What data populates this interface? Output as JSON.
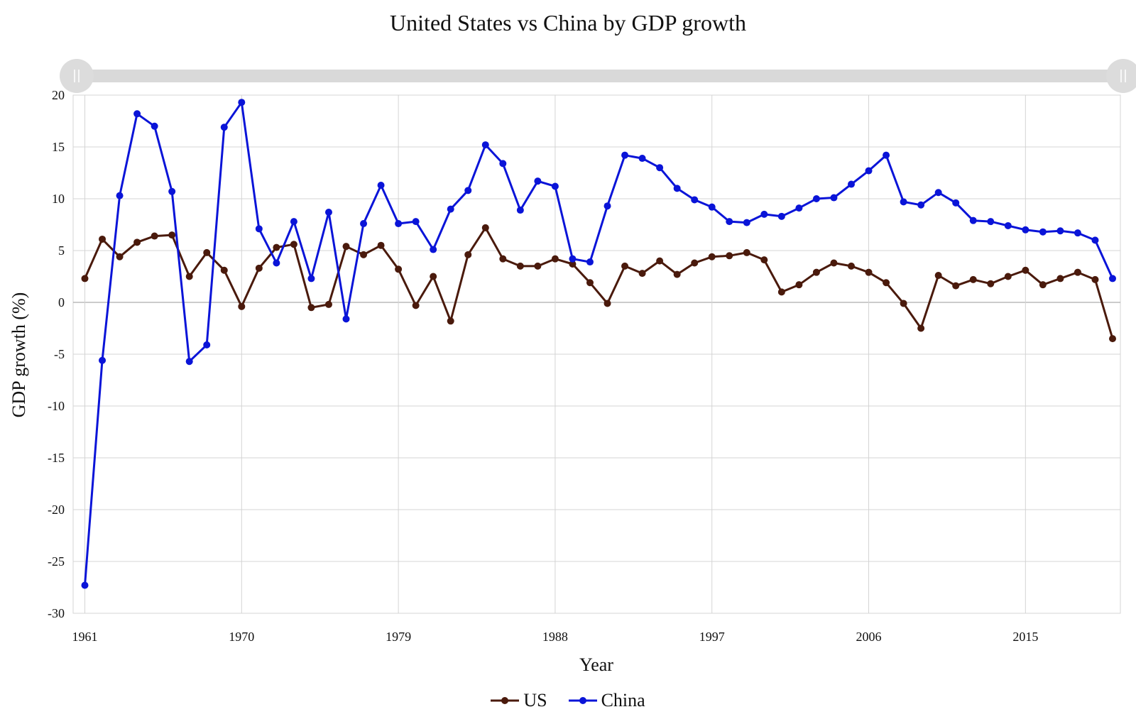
{
  "chart_data": {
    "type": "line",
    "title": "United States vs China by GDP growth",
    "xlabel": "Year",
    "ylabel": "GDP growth (%)",
    "x_tick_labels": [
      "1961",
      "1970",
      "1979",
      "1988",
      "1997",
      "2006",
      "2015"
    ],
    "y_tick_labels": [
      "20",
      "15",
      "10",
      "5",
      "0",
      "-5",
      "-10",
      "-15",
      "-20",
      "-25",
      "-30"
    ],
    "x": [
      1961,
      1962,
      1963,
      1964,
      1965,
      1966,
      1967,
      1968,
      1969,
      1970,
      1971,
      1972,
      1973,
      1974,
      1975,
      1976,
      1977,
      1978,
      1979,
      1980,
      1981,
      1982,
      1983,
      1984,
      1985,
      1986,
      1987,
      1988,
      1989,
      1990,
      1991,
      1992,
      1993,
      1994,
      1995,
      1996,
      1997,
      1998,
      1999,
      2000,
      2001,
      2002,
      2003,
      2004,
      2005,
      2006,
      2007,
      2008,
      2009,
      2010,
      2011,
      2012,
      2013,
      2014,
      2015,
      2016,
      2017,
      2018,
      2019,
      2020
    ],
    "xlim": [
      1961,
      2020
    ],
    "ylim": [
      -30,
      20
    ],
    "grid": true,
    "legend_position": "bottom",
    "series": [
      {
        "name": "US",
        "color": "#4a1a0c",
        "values": [
          2.3,
          6.1,
          4.4,
          5.8,
          6.4,
          6.5,
          2.5,
          4.8,
          3.1,
          -0.4,
          3.3,
          5.3,
          5.6,
          -0.5,
          -0.2,
          5.4,
          4.6,
          5.5,
          3.2,
          -0.3,
          2.5,
          -1.8,
          4.6,
          7.2,
          4.2,
          3.5,
          3.5,
          4.2,
          3.7,
          1.9,
          -0.1,
          3.5,
          2.8,
          4.0,
          2.7,
          3.8,
          4.4,
          4.5,
          4.8,
          4.1,
          1.0,
          1.7,
          2.9,
          3.8,
          3.5,
          2.9,
          1.9,
          -0.1,
          -2.5,
          2.6,
          1.6,
          2.2,
          1.8,
          2.5,
          3.1,
          1.7,
          2.3,
          2.9,
          2.2,
          -3.5
        ]
      },
      {
        "name": "China",
        "color": "#0a14d8",
        "values": [
          -27.3,
          -5.6,
          10.3,
          18.2,
          17.0,
          10.7,
          -5.7,
          -4.1,
          16.9,
          19.3,
          7.1,
          3.8,
          7.8,
          2.3,
          8.7,
          -1.6,
          7.6,
          11.3,
          7.6,
          7.8,
          5.1,
          9.0,
          10.8,
          15.2,
          13.4,
          8.9,
          11.7,
          11.2,
          4.2,
          3.9,
          9.3,
          14.2,
          13.9,
          13.0,
          11.0,
          9.9,
          9.2,
          7.8,
          7.7,
          8.5,
          8.3,
          9.1,
          10.0,
          10.1,
          11.4,
          12.7,
          14.2,
          9.7,
          9.4,
          10.6,
          9.6,
          7.9,
          7.8,
          7.4,
          7.0,
          6.8,
          6.9,
          6.7,
          6.0,
          2.3
        ]
      }
    ]
  }
}
